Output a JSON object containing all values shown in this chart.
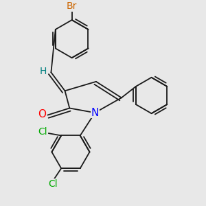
{
  "background_color": "#e8e8e8",
  "bond_color": "#1a1a1a",
  "atom_colors": {
    "Br": "#cc6600",
    "Cl": "#00aa00",
    "N": "#0000ff",
    "O": "#ff0000",
    "H": "#008080",
    "C": "#1a1a1a"
  },
  "font_size_atoms": 9,
  "line_width": 1.3
}
